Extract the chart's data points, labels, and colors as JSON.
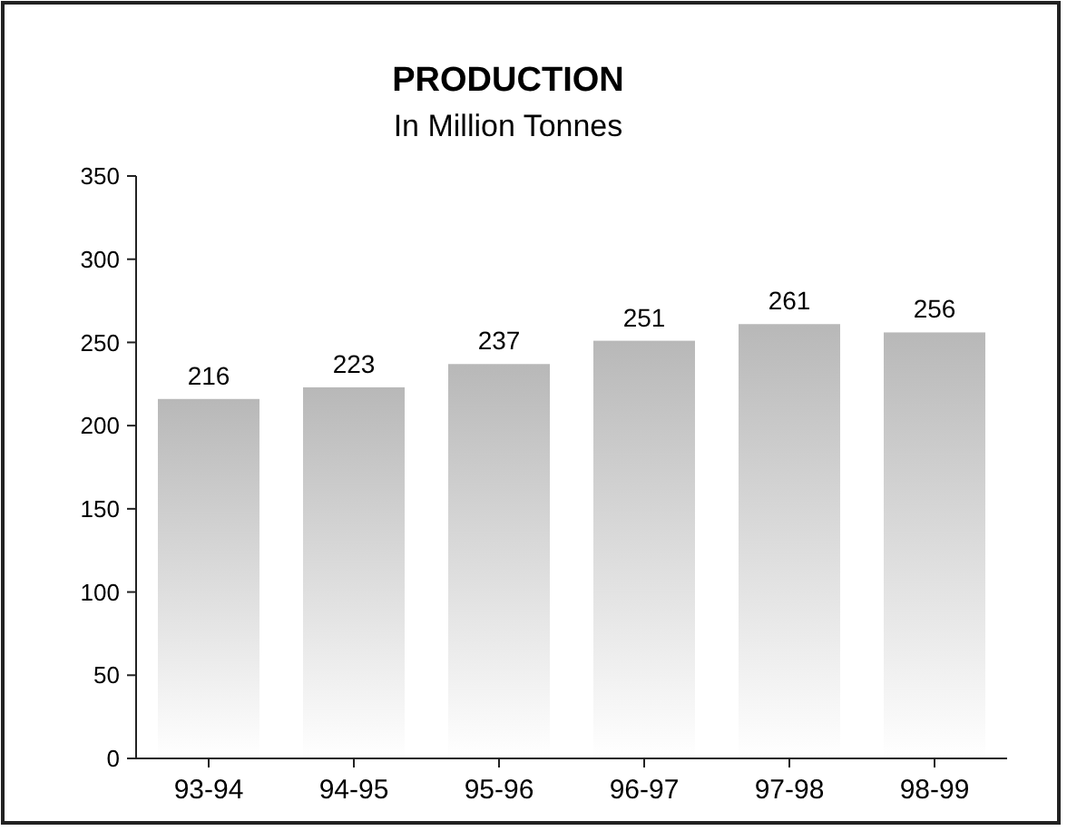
{
  "chart_data": {
    "type": "bar",
    "title": "PRODUCTION",
    "subtitle": "In Million Tonnes",
    "categories": [
      "93-94",
      "94-95",
      "95-96",
      "96-97",
      "97-98",
      "98-99"
    ],
    "values": [
      216,
      223,
      237,
      251,
      261,
      256
    ],
    "color": "#b8b8b8",
    "ylim": [
      0,
      350
    ],
    "yticks": [
      0,
      50,
      100,
      150,
      200,
      250,
      300,
      350
    ],
    "data_labels": true,
    "grid": false
  }
}
